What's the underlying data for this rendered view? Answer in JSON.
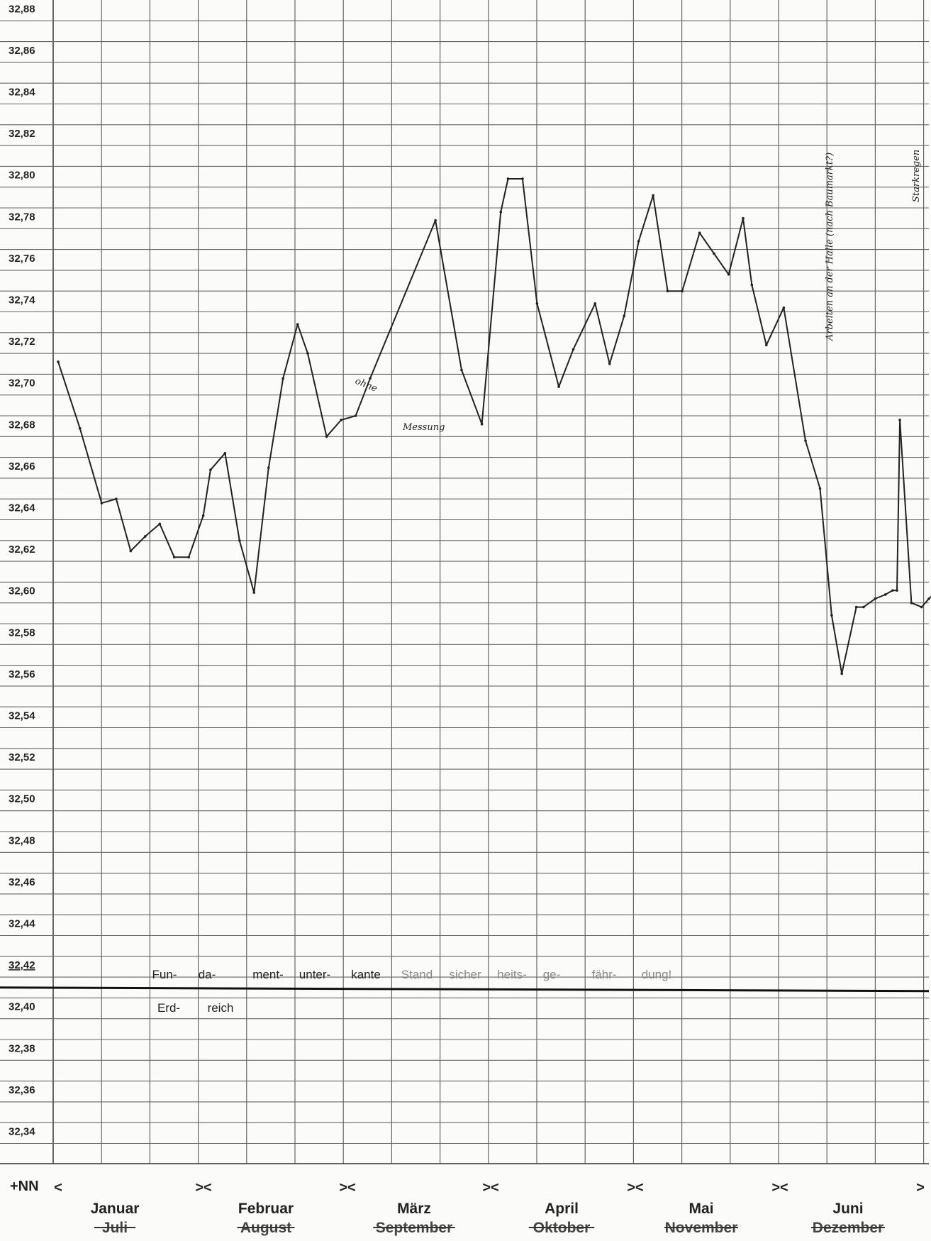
{
  "chart_data": {
    "type": "line",
    "title": "",
    "xlabel": "",
    "ylabel": "+NN",
    "ylim": [
      32.33,
      32.89
    ],
    "y_ticks": [
      "32,88",
      "32,86",
      "32,84",
      "32,82",
      "32,80",
      "32,78",
      "32,76",
      "32,74",
      "32,72",
      "32,70",
      "32,68",
      "32,66",
      "32,64",
      "32,62",
      "32,60",
      "32,58",
      "32,56",
      "32,54",
      "32,52",
      "32,50",
      "32,48",
      "32,46",
      "32,44",
      "32,42",
      "32,40",
      "32,38",
      "32,36",
      "32,34"
    ],
    "grid": true,
    "months": [
      {
        "name": "Januar",
        "struck": "Juli"
      },
      {
        "name": "Februar",
        "struck": "August"
      },
      {
        "name": "März",
        "struck": "September"
      },
      {
        "name": "April",
        "struck": "Oktober"
      },
      {
        "name": "Mai",
        "struck": "November"
      },
      {
        "name": "Juni",
        "struck": "Dezember"
      }
    ],
    "month_separators": [
      "<",
      "><",
      "><",
      "><",
      "><",
      "><",
      ">"
    ],
    "reference_line": {
      "value": 32.415,
      "upper_words": [
        "Fun-",
        "da-",
        "ment-",
        "unter-",
        "kante",
        "Stand",
        "sicher",
        "heits-",
        "ge-",
        "fähr-",
        "dung!"
      ],
      "lower_words": [
        "Erd-",
        "reich"
      ]
    },
    "x_range": [
      0,
      6
    ],
    "series": [
      {
        "x": [
          0.0,
          0.15,
          0.3,
          0.4,
          0.5,
          0.6,
          0.7,
          0.8,
          0.9,
          1.0,
          1.05,
          1.15,
          1.25,
          1.35,
          1.45,
          1.55,
          1.65,
          1.72,
          1.85,
          1.95,
          2.05,
          2.15,
          2.6,
          2.78,
          2.92,
          3.05,
          3.1,
          3.2,
          3.3,
          3.45,
          3.55,
          3.7,
          3.8,
          3.9,
          4.0,
          4.1,
          4.2,
          4.3,
          4.42,
          4.52,
          4.62,
          4.72,
          4.78,
          4.88,
          5.0,
          5.15,
          5.25,
          5.33,
          5.4,
          5.5,
          5.55,
          5.63,
          5.7,
          5.75,
          5.78,
          5.8,
          5.88,
          5.95,
          6.0,
          6.03
        ],
        "y": [
          32.716,
          32.684,
          32.648,
          32.65,
          32.625,
          32.632,
          32.638,
          32.622,
          32.622,
          32.642,
          32.664,
          32.672,
          32.63,
          32.605,
          32.665,
          32.708,
          32.734,
          32.72,
          32.68,
          32.688,
          32.69,
          32.708,
          32.784,
          32.712,
          32.686,
          32.788,
          32.804,
          32.804,
          32.744,
          32.704,
          32.722,
          32.744,
          32.715,
          32.738,
          32.774,
          32.796,
          32.75,
          32.75,
          32.778,
          32.768,
          32.758,
          32.785,
          32.753,
          32.724,
          32.742,
          32.678,
          32.655,
          32.594,
          32.566,
          32.598,
          32.598,
          32.602,
          32.604,
          32.606,
          32.606,
          32.688,
          32.6,
          32.598,
          32.602,
          32.604
        ]
      }
    ],
    "annotations": {
      "ohne": "ohne",
      "messung": "Messung",
      "arbeiten": "Arbeiten an der Halle (nach Baumarkt?)",
      "starkregen": "Starkregen"
    }
  }
}
